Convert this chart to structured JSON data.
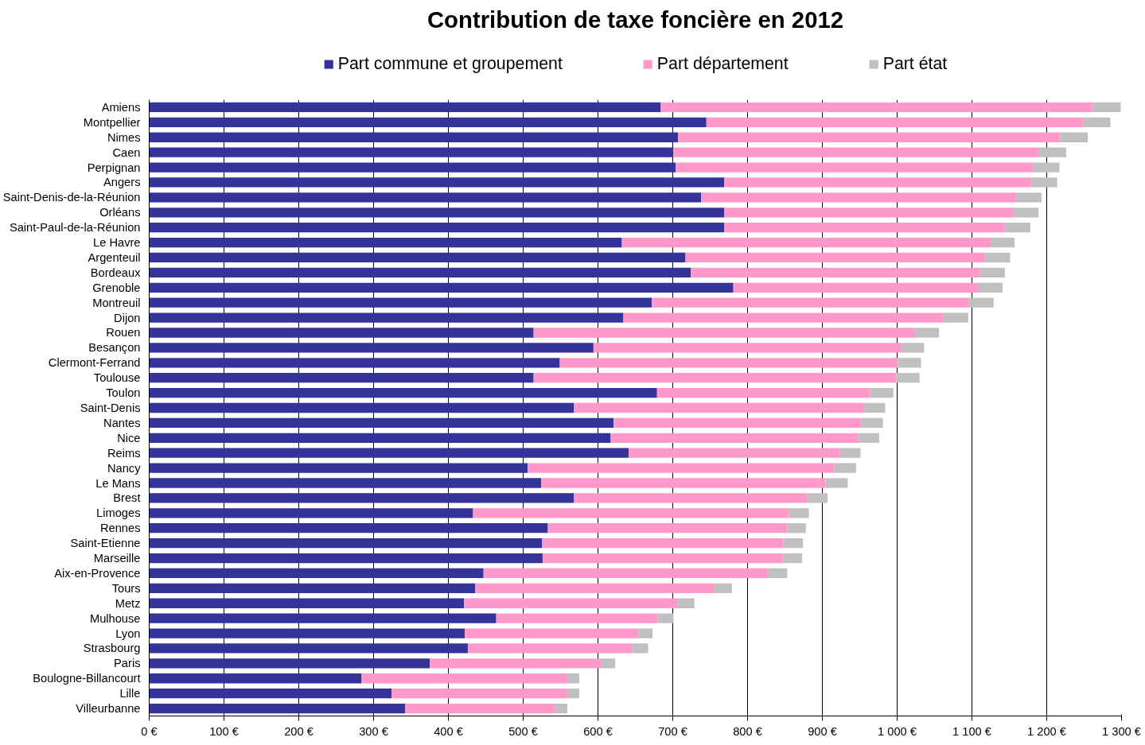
{
  "chart_data": {
    "type": "bar",
    "orientation": "horizontal",
    "stacked": true,
    "title": "Contribution de taxe foncière en 2012",
    "categories": [
      "Amiens",
      "Montpellier",
      "Nimes",
      "Caen",
      "Perpignan",
      "Angers",
      "Saint-Denis-de-la-Réunion",
      "Orléans",
      "Saint-Paul-de-la-Réunion",
      "Le Havre",
      "Argenteuil",
      "Bordeaux",
      "Grenoble",
      "Montreuil",
      "Dijon",
      "Rouen",
      "Besançon",
      "Clermont-Ferrand",
      "Toulouse",
      "Toulon",
      "Saint-Denis",
      "Nantes",
      "Nice",
      "Reims",
      "Nancy",
      "Le Mans",
      "Brest",
      "Limoges",
      "Rennes",
      "Saint-Etienne",
      "Marseille",
      "Aix-en-Provence",
      "Tours",
      "Metz",
      "Mulhouse",
      "Lyon",
      "Strasbourg",
      "Paris",
      "Boulogne-Billancourt",
      "Lille",
      "Villeurbanne"
    ],
    "series": [
      {
        "name": "Part commune et groupement",
        "color": "#333399",
        "values": [
          684,
          745,
          707,
          701,
          704,
          769,
          738,
          769,
          769,
          632,
          717,
          724,
          781,
          672,
          634,
          514,
          594,
          549,
          514,
          679,
          568,
          621,
          617,
          641,
          506,
          524,
          568,
          433,
          533,
          525,
          526,
          447,
          436,
          421,
          464,
          422,
          426,
          375,
          284,
          324,
          342
        ]
      },
      {
        "name": "Part département",
        "color": "#ff99cc",
        "values": [
          577,
          504,
          511,
          489,
          478,
          410,
          421,
          386,
          375,
          493,
          401,
          387,
          327,
          424,
          428,
          510,
          412,
          452,
          485,
          285,
          388,
          331,
          331,
          282,
          410,
          380,
          312,
          422,
          320,
          323,
          321,
          381,
          320,
          285,
          216,
          232,
          220,
          230,
          275,
          235,
          201
        ]
      },
      {
        "name": "Part état",
        "color": "#c0c0c0",
        "values": [
          38,
          36,
          37,
          36,
          35,
          35,
          34,
          34,
          34,
          32,
          33,
          33,
          33,
          33,
          33,
          32,
          30,
          31,
          31,
          31,
          28,
          29,
          28,
          28,
          29,
          30,
          27,
          27,
          25,
          26,
          26,
          25,
          23,
          23,
          21,
          19,
          21,
          18,
          16,
          16,
          16
        ]
      }
    ],
    "xlim": [
      0,
      1300
    ],
    "xticks": [
      {
        "value": 0,
        "label": "0 €"
      },
      {
        "value": 100,
        "label": "100 €"
      },
      {
        "value": 200,
        "label": "200 €"
      },
      {
        "value": 300,
        "label": "300 €"
      },
      {
        "value": 400,
        "label": "400 €"
      },
      {
        "value": 500,
        "label": "500 €"
      },
      {
        "value": 600,
        "label": "600 €"
      },
      {
        "value": 700,
        "label": "700 €"
      },
      {
        "value": 800,
        "label": "800 €"
      },
      {
        "value": 900,
        "label": "900 €"
      },
      {
        "value": 1000,
        "label": "1 000 €"
      },
      {
        "value": 1100,
        "label": "1 100 €"
      },
      {
        "value": 1200,
        "label": "1 200 €"
      },
      {
        "value": 1300,
        "label": "1 300 €"
      }
    ],
    "grid": "x",
    "legend": "top"
  }
}
